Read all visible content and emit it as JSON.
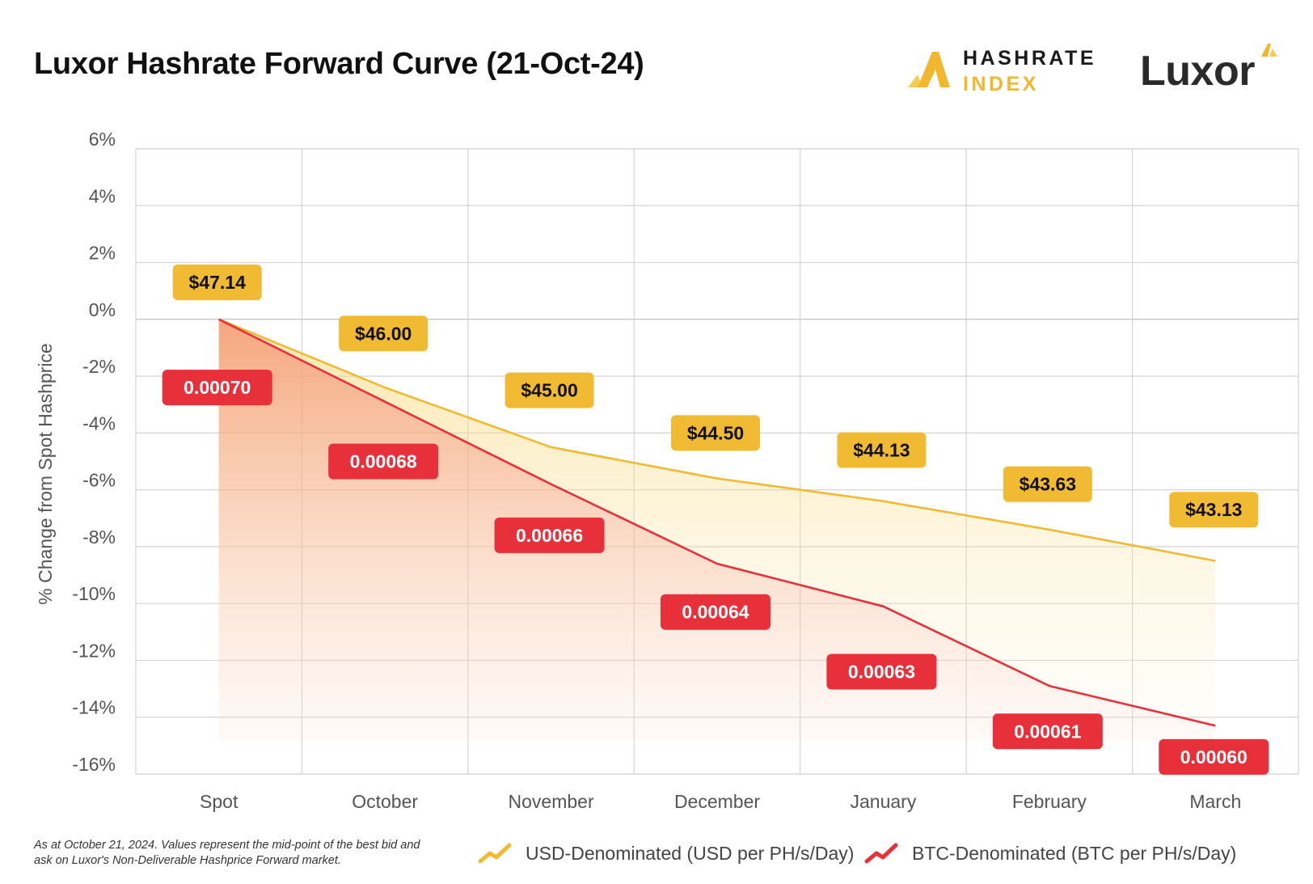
{
  "header": {
    "title": "Luxor Hashrate Forward Curve (21-Oct-24)",
    "hashrate_index_line1": "HASHRATE",
    "hashrate_index_line2": "INDEX",
    "luxor_wordmark": "Luxor"
  },
  "colors": {
    "usd": "#f0bb33",
    "btc": "#e8303a",
    "grid": "#d4d4d4",
    "axis_text": "#555555"
  },
  "chart_data": {
    "type": "area",
    "title": "Luxor Hashrate Forward Curve (21-Oct-24)",
    "xlabel": "",
    "ylabel": "% Change from Spot Hashprice",
    "ylim": [
      -16,
      6
    ],
    "y_ticks": [
      "6%",
      "4%",
      "2%",
      "0%",
      "-2%",
      "-4%",
      "-6%",
      "-8%",
      "-10%",
      "-12%",
      "-14%",
      "-16%"
    ],
    "y_tick_values": [
      6,
      4,
      2,
      0,
      -2,
      -4,
      -6,
      -8,
      -10,
      -12,
      -14,
      -16
    ],
    "categories": [
      "Spot",
      "October",
      "November",
      "December",
      "January",
      "February",
      "March"
    ],
    "grid": true,
    "legend_position": "bottom",
    "series": [
      {
        "name": "USD-Denominated (USD per PH/s/Day)",
        "color": "#f0bb33",
        "values": [
          0,
          -2.4,
          -4.5,
          -5.6,
          -6.4,
          -7.4,
          -8.5
        ],
        "labels": [
          "$47.14",
          "$46.00",
          "$45.00",
          "$44.50",
          "$44.13",
          "$43.63",
          "$43.13"
        ],
        "label_y": [
          1.3,
          -0.5,
          -2.5,
          -4.0,
          -4.6,
          -5.8,
          -6.7
        ]
      },
      {
        "name": "BTC-Denominated (BTC per PH/s/Day)",
        "color": "#e8303a",
        "values": [
          0,
          -2.9,
          -5.8,
          -8.6,
          -10.1,
          -12.9,
          -14.3
        ],
        "labels": [
          "0.00070",
          "0.00068",
          "0.00066",
          "0.00064",
          "0.00063",
          "0.00061",
          "0.00060"
        ],
        "label_y": [
          -2.4,
          -5.0,
          -7.6,
          -10.3,
          -12.4,
          -14.5,
          -15.4
        ]
      }
    ]
  },
  "footnote": "As at October 21, 2024. Values represent the mid-point of the best bid and ask on Luxor's Non-Deliverable Hashprice Forward market."
}
